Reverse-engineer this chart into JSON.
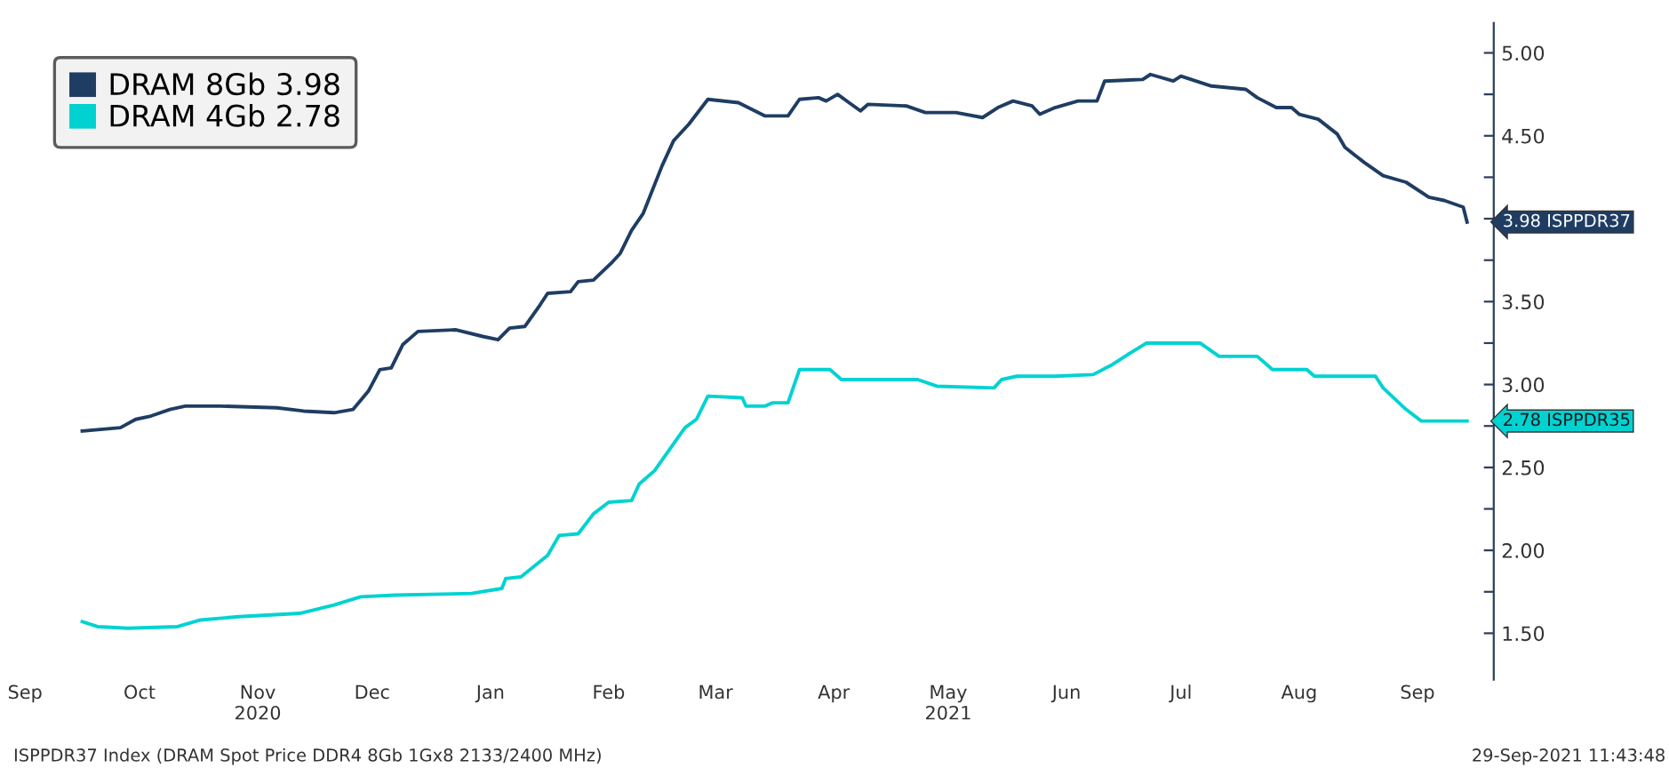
{
  "chart_data": {
    "type": "line",
    "x": [
      "2020-09-16",
      "2020-09-26",
      "2020-09-30",
      "2020-10-04",
      "2020-10-09",
      "2020-10-13",
      "2020-10-22",
      "2020-11-06",
      "2020-11-13",
      "2020-11-21",
      "2020-11-26",
      "2020-11-30",
      "2020-12-03",
      "2020-12-06",
      "2020-12-09",
      "2020-12-13",
      "2020-12-23",
      "2020-12-30",
      "2021-01-03",
      "2021-01-06",
      "2021-01-10",
      "2021-01-14",
      "2021-01-16",
      "2021-01-22",
      "2021-01-24",
      "2021-01-28",
      "2021-02-02",
      "2021-02-04",
      "2021-02-07",
      "2021-02-10",
      "2021-02-15",
      "2021-02-18",
      "2021-02-22",
      "2021-02-27",
      "2021-03-07",
      "2021-03-14",
      "2021-03-20",
      "2021-03-23",
      "2021-03-28",
      "2021-03-30",
      "2021-04-02",
      "2021-04-05",
      "2021-04-08",
      "2021-04-10",
      "2021-04-20",
      "2021-04-25",
      "2021-05-03",
      "2021-05-10",
      "2021-05-14",
      "2021-05-18",
      "2021-05-23",
      "2021-05-25",
      "2021-05-29",
      "2021-06-04",
      "2021-06-09",
      "2021-06-11",
      "2021-06-21",
      "2021-06-23",
      "2021-06-29",
      "2021-07-01",
      "2021-07-09",
      "2021-07-18",
      "2021-07-21",
      "2021-07-26",
      "2021-07-30",
      "2021-08-01",
      "2021-08-06",
      "2021-08-11",
      "2021-08-13",
      "2021-08-18",
      "2021-08-23",
      "2021-08-29",
      "2021-09-04",
      "2021-09-08",
      "2021-09-13",
      "2021-09-14"
    ],
    "series": [
      {
        "name": "DRAM 8Gb 3.98",
        "color": "#1f3d63",
        "values": [
          2.72,
          2.74,
          2.79,
          2.81,
          2.85,
          2.87,
          2.87,
          2.86,
          2.84,
          2.83,
          2.85,
          2.96,
          3.09,
          3.1,
          3.24,
          3.32,
          3.33,
          3.29,
          3.27,
          3.34,
          3.35,
          3.48,
          3.55,
          3.56,
          3.62,
          3.63,
          3.74,
          3.79,
          3.93,
          4.03,
          4.32,
          4.47,
          4.57,
          4.72,
          4.7,
          4.62,
          4.62,
          4.72,
          4.73,
          4.71,
          4.75,
          4.7,
          4.65,
          4.69,
          4.68,
          4.64,
          4.64,
          4.61,
          4.67,
          4.71,
          4.68,
          4.63,
          4.67,
          4.71,
          4.71,
          4.83,
          4.84,
          4.87,
          4.83,
          4.86,
          4.8,
          4.78,
          4.73,
          4.67,
          4.67,
          4.63,
          4.6,
          4.51,
          4.43,
          4.34,
          4.26,
          4.22,
          4.13,
          4.11,
          4.07,
          3.98
        ]
      },
      {
        "name": "DRAM 4Gb 2.78",
        "color": "#00d2d2",
        "x": [
          "2020-09-16",
          "2020-09-20",
          "2020-09-28",
          "2020-10-11",
          "2020-10-17",
          "2020-10-27",
          "2020-11-12",
          "2020-11-21",
          "2020-11-28",
          "2020-12-07",
          "2020-12-27",
          "2021-01-04",
          "2021-01-05",
          "2021-01-09",
          "2021-01-16",
          "2021-01-19",
          "2021-01-24",
          "2021-01-28",
          "2021-02-01",
          "2021-02-07",
          "2021-02-09",
          "2021-02-13",
          "2021-02-17",
          "2021-02-21",
          "2021-02-24",
          "2021-02-27",
          "2021-03-08",
          "2021-03-09",
          "2021-03-14",
          "2021-03-16",
          "2021-03-20",
          "2021-03-23",
          "2021-03-31",
          "2021-04-03",
          "2021-04-23",
          "2021-04-28",
          "2021-05-13",
          "2021-05-15",
          "2021-05-19",
          "2021-05-29",
          "2021-06-08",
          "2021-06-13",
          "2021-06-17",
          "2021-06-22",
          "2021-07-06",
          "2021-07-11",
          "2021-07-21",
          "2021-07-25",
          "2021-08-03",
          "2021-08-05",
          "2021-08-21",
          "2021-08-23",
          "2021-08-29",
          "2021-09-02",
          "2021-09-14"
        ],
        "values": [
          1.57,
          1.54,
          1.53,
          1.54,
          1.58,
          1.6,
          1.62,
          1.67,
          1.72,
          1.73,
          1.74,
          1.77,
          1.83,
          1.84,
          1.97,
          2.09,
          2.1,
          2.22,
          2.29,
          2.3,
          2.4,
          2.48,
          2.61,
          2.74,
          2.79,
          2.93,
          2.92,
          2.87,
          2.87,
          2.89,
          2.89,
          3.09,
          3.09,
          3.03,
          3.03,
          2.99,
          2.98,
          3.03,
          3.05,
          3.05,
          3.06,
          3.12,
          3.18,
          3.25,
          3.25,
          3.17,
          3.17,
          3.09,
          3.09,
          3.05,
          3.05,
          2.98,
          2.85,
          2.78,
          2.78
        ]
      }
    ],
    "xlim": [
      "2020-09-01",
      "2021-09-21"
    ],
    "xticks": [
      {
        "value": "2020-09-01",
        "label": "Sep"
      },
      {
        "value": "2020-10-01",
        "label": "Oct"
      },
      {
        "value": "2020-11-01",
        "label": "Nov\n2020"
      },
      {
        "value": "2020-12-01",
        "label": "Dec"
      },
      {
        "value": "2021-01-01",
        "label": "Jan"
      },
      {
        "value": "2021-02-01",
        "label": "Feb"
      },
      {
        "value": "2021-03-01",
        "label": "Mar"
      },
      {
        "value": "2021-04-01",
        "label": "Apr"
      },
      {
        "value": "2021-05-01",
        "label": "May\n2021"
      },
      {
        "value": "2021-06-01",
        "label": "Jun"
      },
      {
        "value": "2021-07-01",
        "label": "Jul"
      },
      {
        "value": "2021-08-01",
        "label": "Aug"
      },
      {
        "value": "2021-09-01",
        "label": "Sep"
      }
    ],
    "ylim": [
      1.22,
      5.18
    ],
    "yticks": [
      {
        "value": 1.5,
        "label": "1.50"
      },
      {
        "value": 1.75,
        "label": null
      },
      {
        "value": 2.0,
        "label": "2.00"
      },
      {
        "value": 2.25,
        "label": null
      },
      {
        "value": 2.5,
        "label": "2.50"
      },
      {
        "value": 2.75,
        "label": null
      },
      {
        "value": 3.0,
        "label": "3.00"
      },
      {
        "value": 3.25,
        "label": null
      },
      {
        "value": 3.5,
        "label": "3.50"
      },
      {
        "value": 3.75,
        "label": null
      },
      {
        "value": 4.0,
        "label": null
      },
      {
        "value": 4.25,
        "label": null
      },
      {
        "value": 4.5,
        "label": "4.50"
      },
      {
        "value": 4.75,
        "label": null
      },
      {
        "value": 5.0,
        "label": "5.00"
      }
    ],
    "annotations": [
      {
        "text": "3.98 ISPPDR37",
        "x": "2021-09-14",
        "y": 3.98
      },
      {
        "text": "2.78 ISPPDR35",
        "x": "2021-09-14",
        "y": 2.78
      },
      "ISPPDR37 Index (DRAM Spot Price DDR4 8Gb 1Gx8 2133/2400 MHz)",
      "29-Sep-2021 11:43:48"
    ],
    "legend": "top left",
    "grid": false,
    "line_style": "solid",
    "marker": "none"
  }
}
